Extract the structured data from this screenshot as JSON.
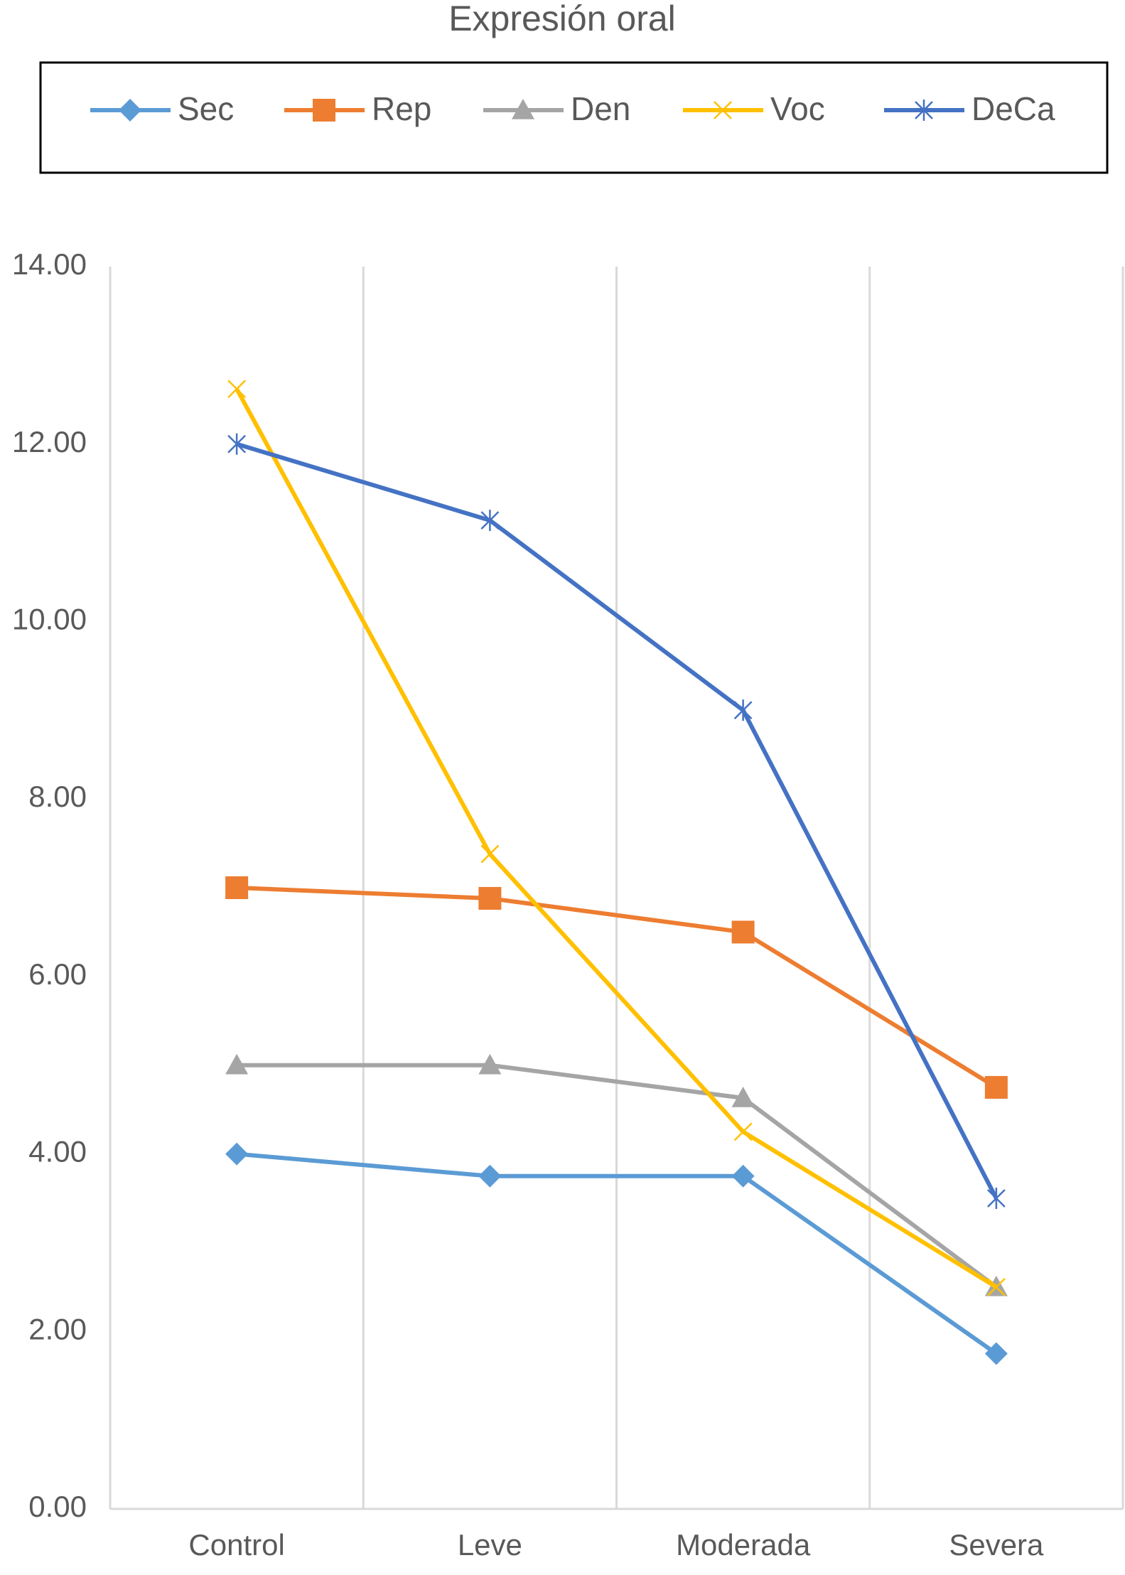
{
  "chart_data": {
    "type": "line",
    "title": "Expresión oral",
    "categories": [
      "Control",
      "Leve",
      "Moderada",
      "Severa"
    ],
    "series": [
      {
        "name": "Sec",
        "color": "#5b9bd5",
        "marker": "diamond",
        "values": [
          4.0,
          3.75,
          3.75,
          1.75
        ]
      },
      {
        "name": "Rep",
        "color": "#ed7d31",
        "marker": "square",
        "values": [
          7.0,
          6.88,
          6.5,
          4.75
        ]
      },
      {
        "name": "Den",
        "color": "#a5a5a5",
        "marker": "triangle",
        "values": [
          5.0,
          5.0,
          4.63,
          2.5
        ]
      },
      {
        "name": "Voc",
        "color": "#ffc000",
        "marker": "x",
        "values": [
          12.62,
          7.38,
          4.25,
          2.5
        ]
      },
      {
        "name": "DeCa",
        "color": "#4472c4",
        "marker": "star",
        "values": [
          12.0,
          11.14,
          9.0,
          3.5
        ]
      }
    ],
    "ylim": [
      0,
      14
    ],
    "yticks": [
      {
        "value": 0,
        "label": "0.00"
      },
      {
        "value": 2,
        "label": "2.00"
      },
      {
        "value": 4,
        "label": "4.00"
      },
      {
        "value": 6,
        "label": "6.00"
      },
      {
        "value": 8,
        "label": "8.00"
      },
      {
        "value": 10,
        "label": "10.00"
      },
      {
        "value": 12,
        "label": "12.00"
      },
      {
        "value": 14,
        "label": "14.00"
      }
    ],
    "grid": true,
    "legend": "top"
  }
}
